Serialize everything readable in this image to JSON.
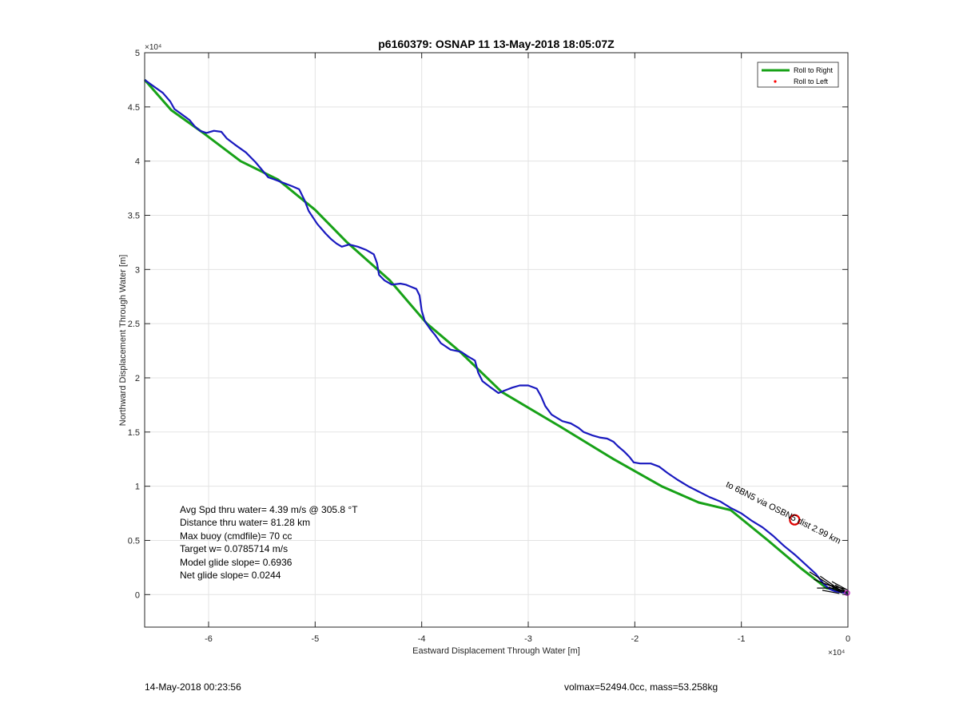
{
  "chart_data": {
    "type": "line",
    "title": "p6160379: OSNAP 11 13-May-2018 18:05:07Z",
    "xlabel": "Eastward Displacement Through Water [m]",
    "ylabel": "Northward Displacement Through Water [m]",
    "x_exponent_label": "×10⁴",
    "y_exponent_label": "×10⁴",
    "xlim": [
      -66000,
      0
    ],
    "ylim": [
      -3000,
      50000
    ],
    "x_ticks": [
      -60000,
      -50000,
      -40000,
      -30000,
      -20000,
      -10000,
      0
    ],
    "x_tick_labels": [
      "-6",
      "-5",
      "-4",
      "-3",
      "-2",
      "-1",
      "0"
    ],
    "y_ticks": [
      0,
      5000,
      10000,
      15000,
      20000,
      25000,
      30000,
      35000,
      40000,
      45000,
      50000
    ],
    "y_tick_labels": [
      "0",
      "0.5",
      "1",
      "1.5",
      "2",
      "2.5",
      "3",
      "3.5",
      "4",
      "4.5",
      "5"
    ],
    "grid": true,
    "legend_position": "top-right",
    "series": [
      {
        "name": "Roll to Right",
        "color": "#17a117",
        "points": [
          [
            -66000,
            47500
          ],
          [
            -63500,
            44700
          ],
          [
            -60500,
            42600
          ],
          [
            -57000,
            40000
          ],
          [
            -53500,
            38300
          ],
          [
            -50000,
            35500
          ],
          [
            -47000,
            32500
          ],
          [
            -43000,
            29000
          ],
          [
            -39500,
            25000
          ],
          [
            -36500,
            22500
          ],
          [
            -32500,
            18700
          ],
          [
            -27000,
            15500
          ],
          [
            -22000,
            12500
          ],
          [
            -17500,
            10000
          ],
          [
            -14000,
            8500
          ],
          [
            -11000,
            7800
          ],
          [
            -7500,
            5000
          ],
          [
            -4500,
            2500
          ],
          [
            -2000,
            600
          ],
          [
            0,
            200
          ]
        ]
      },
      {
        "name": "Roll to Left",
        "color": "#ff0000",
        "points": []
      }
    ],
    "track": {
      "color": "#1919bf",
      "points": [
        [
          -66000,
          47500
        ],
        [
          -65300,
          47000
        ],
        [
          -64300,
          46300
        ],
        [
          -63600,
          45500
        ],
        [
          -63200,
          44800
        ],
        [
          -62500,
          44300
        ],
        [
          -61800,
          43800
        ],
        [
          -61300,
          43200
        ],
        [
          -60800,
          42800
        ],
        [
          -60200,
          42600
        ],
        [
          -59500,
          42800
        ],
        [
          -58800,
          42700
        ],
        [
          -58300,
          42100
        ],
        [
          -57500,
          41500
        ],
        [
          -56500,
          40800
        ],
        [
          -55600,
          39900
        ],
        [
          -55000,
          39200
        ],
        [
          -54400,
          38500
        ],
        [
          -53800,
          38300
        ],
        [
          -53000,
          38000
        ],
        [
          -52200,
          37700
        ],
        [
          -51500,
          37400
        ],
        [
          -51000,
          36400
        ],
        [
          -50600,
          35400
        ],
        [
          -49800,
          34200
        ],
        [
          -49000,
          33300
        ],
        [
          -48500,
          32800
        ],
        [
          -48000,
          32400
        ],
        [
          -47500,
          32100
        ],
        [
          -46800,
          32300
        ],
        [
          -46000,
          32100
        ],
        [
          -45200,
          31800
        ],
        [
          -44500,
          31400
        ],
        [
          -44200,
          30600
        ],
        [
          -44000,
          29500
        ],
        [
          -43500,
          29000
        ],
        [
          -42800,
          28600
        ],
        [
          -42000,
          28700
        ],
        [
          -41500,
          28600
        ],
        [
          -41000,
          28400
        ],
        [
          -40500,
          28200
        ],
        [
          -40200,
          27600
        ],
        [
          -40000,
          26200
        ],
        [
          -39700,
          25200
        ],
        [
          -39200,
          24500
        ],
        [
          -38700,
          23900
        ],
        [
          -38200,
          23200
        ],
        [
          -37300,
          22600
        ],
        [
          -36300,
          22400
        ],
        [
          -35700,
          22000
        ],
        [
          -35000,
          21600
        ],
        [
          -34700,
          20500
        ],
        [
          -34300,
          19700
        ],
        [
          -33500,
          19100
        ],
        [
          -32800,
          18600
        ],
        [
          -32300,
          18800
        ],
        [
          -31500,
          19100
        ],
        [
          -30800,
          19300
        ],
        [
          -30000,
          19300
        ],
        [
          -29200,
          19000
        ],
        [
          -28800,
          18300
        ],
        [
          -28400,
          17400
        ],
        [
          -27800,
          16600
        ],
        [
          -26800,
          16000
        ],
        [
          -26000,
          15800
        ],
        [
          -25300,
          15400
        ],
        [
          -24800,
          15000
        ],
        [
          -24000,
          14700
        ],
        [
          -23300,
          14500
        ],
        [
          -22600,
          14400
        ],
        [
          -22000,
          14100
        ],
        [
          -21600,
          13700
        ],
        [
          -21000,
          13200
        ],
        [
          -20500,
          12700
        ],
        [
          -20100,
          12200
        ],
        [
          -19500,
          12100
        ],
        [
          -18500,
          12100
        ],
        [
          -17700,
          11800
        ],
        [
          -16900,
          11200
        ],
        [
          -16000,
          10600
        ],
        [
          -15000,
          10000
        ],
        [
          -14000,
          9500
        ],
        [
          -13000,
          9000
        ],
        [
          -12000,
          8600
        ],
        [
          -11000,
          8000
        ],
        [
          -10000,
          7500
        ],
        [
          -9000,
          6800
        ],
        [
          -8000,
          6200
        ],
        [
          -7000,
          5400
        ],
        [
          -6000,
          4500
        ],
        [
          -5000,
          3700
        ],
        [
          -4000,
          2800
        ],
        [
          -3000,
          1900
        ],
        [
          -2300,
          1000
        ],
        [
          -1700,
          500
        ],
        [
          -1200,
          300
        ],
        [
          0,
          100
        ]
      ]
    },
    "surface_markers": {
      "color": "#000000",
      "segments": [
        [
          [
            -3600,
            2100
          ],
          [
            -600,
            200
          ]
        ],
        [
          [
            -3200,
            1400
          ],
          [
            -300,
            300
          ]
        ],
        [
          [
            -2600,
            1700
          ],
          [
            -700,
            400
          ]
        ],
        [
          [
            -2200,
            1000
          ],
          [
            -200,
            500
          ]
        ],
        [
          [
            -1800,
            700
          ],
          [
            -500,
            150
          ]
        ],
        [
          [
            -1500,
            1200
          ],
          [
            0,
            400
          ]
        ],
        [
          [
            -2900,
            600
          ],
          [
            -1000,
            600
          ]
        ],
        [
          [
            -1200,
            900
          ],
          [
            -100,
            250
          ]
        ],
        [
          [
            -2400,
            400
          ],
          [
            -800,
            100
          ]
        ],
        [
          [
            -1000,
            500
          ],
          [
            0,
            100
          ]
        ]
      ],
      "end_marker_color": "#cc33cc",
      "end_marker": [
        0,
        150
      ]
    },
    "target_circle": {
      "color": "#dd0000",
      "point": [
        -5000,
        6900
      ]
    },
    "track_annotation": {
      "text": "to 6BN5 via OSBN5 dist 2.99 km",
      "anchor": [
        -11500,
        10000
      ]
    },
    "stats": [
      "Avg Spd thru water=  4.39 m/s @ 305.8 °T",
      "Distance thru water= 81.28 km",
      "Max buoy (cmdfile)= 70 cc",
      "Target w= 0.0785714 m/s",
      "Model glide slope= 0.6936",
      "Net glide slope= 0.0244"
    ]
  },
  "footer": {
    "timestamp": "14-May-2018 00:23:56",
    "vehicle": "volmax=52494.0cc, mass=53.258kg"
  }
}
